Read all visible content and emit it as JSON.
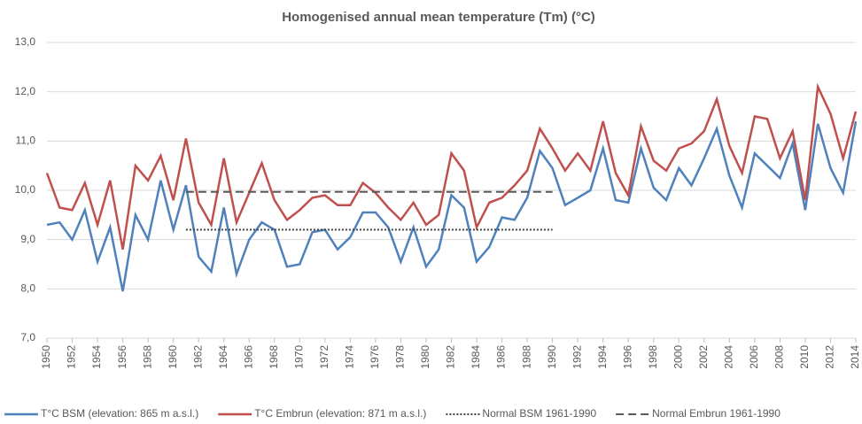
{
  "chart_data": {
    "type": "line",
    "title": "Homogenised annual mean temperature (Tm) (°C)",
    "x": [
      1950,
      1951,
      1952,
      1953,
      1954,
      1955,
      1956,
      1957,
      1958,
      1959,
      1960,
      1961,
      1962,
      1963,
      1964,
      1965,
      1966,
      1967,
      1968,
      1969,
      1970,
      1971,
      1972,
      1973,
      1974,
      1975,
      1976,
      1977,
      1978,
      1979,
      1980,
      1981,
      1982,
      1983,
      1984,
      1985,
      1986,
      1987,
      1988,
      1989,
      1990,
      1991,
      1992,
      1993,
      1994,
      1995,
      1996,
      1997,
      1998,
      1999,
      2000,
      2001,
      2002,
      2003,
      2004,
      2005,
      2006,
      2007,
      2008,
      2009,
      2010,
      2011,
      2012,
      2013,
      2014
    ],
    "series": [
      {
        "name": "T°C BSM (elevation: 865 m a.s.l.)",
        "color": "#4f81bd",
        "style": "solid",
        "values": [
          9.3,
          9.35,
          9.0,
          9.6,
          8.55,
          9.25,
          7.95,
          9.5,
          9.0,
          10.2,
          9.2,
          10.1,
          8.65,
          8.35,
          9.65,
          8.3,
          9.0,
          9.35,
          9.2,
          8.45,
          8.5,
          9.15,
          9.2,
          8.8,
          9.05,
          9.55,
          9.55,
          9.25,
          8.55,
          9.25,
          8.45,
          8.8,
          9.9,
          9.65,
          8.55,
          8.85,
          9.45,
          9.4,
          9.85,
          10.8,
          10.45,
          9.7,
          9.85,
          10.0,
          10.85,
          9.8,
          9.75,
          10.85,
          10.05,
          9.8,
          10.45,
          10.1,
          10.65,
          11.25,
          10.3,
          9.65,
          10.75,
          10.5,
          10.25,
          10.95,
          9.6,
          11.35,
          10.45,
          9.95,
          11.4
        ]
      },
      {
        "name": "T°C Embrun (elevation: 871 m a.s.l.)",
        "color": "#c0504d",
        "style": "solid",
        "values": [
          10.35,
          9.65,
          9.6,
          10.15,
          9.3,
          10.2,
          8.8,
          10.5,
          10.2,
          10.7,
          9.8,
          11.05,
          9.75,
          9.3,
          10.65,
          9.35,
          9.95,
          10.55,
          9.8,
          9.4,
          9.6,
          9.85,
          9.9,
          9.7,
          9.7,
          10.15,
          9.95,
          9.65,
          9.4,
          9.75,
          9.3,
          9.5,
          10.75,
          10.4,
          9.25,
          9.75,
          9.85,
          10.1,
          10.4,
          11.25,
          10.85,
          10.4,
          10.75,
          10.4,
          11.4,
          10.35,
          9.9,
          11.3,
          10.6,
          10.4,
          10.85,
          10.95,
          11.2,
          11.85,
          10.9,
          10.35,
          11.5,
          11.45,
          10.65,
          11.2,
          9.8,
          12.1,
          11.55,
          10.65,
          11.6
        ]
      },
      {
        "name": "Normal BSM 1961-1990",
        "color": "#404040",
        "style": "dotted",
        "x": [
          1961,
          1990
        ],
        "values": [
          9.2,
          9.2
        ]
      },
      {
        "name": "Normal Embrun 1961-1990",
        "color": "#595959",
        "style": "dashed",
        "x": [
          1961,
          1990
        ],
        "values": [
          9.97,
          9.97
        ]
      }
    ],
    "xlim": [
      1950,
      2014
    ],
    "xticks": [
      1950,
      1952,
      1954,
      1956,
      1958,
      1960,
      1962,
      1964,
      1966,
      1968,
      1970,
      1972,
      1974,
      1976,
      1978,
      1980,
      1982,
      1984,
      1986,
      1988,
      1990,
      1992,
      1994,
      1996,
      1998,
      2000,
      2002,
      2004,
      2006,
      2008,
      2010,
      2012,
      2014
    ],
    "ylim": [
      7,
      13
    ],
    "yticks": [
      {
        "value": 7,
        "label": "7,0"
      },
      {
        "value": 8,
        "label": "8,0"
      },
      {
        "value": 9,
        "label": "9,0"
      },
      {
        "value": 10,
        "label": "10,0"
      },
      {
        "value": 11,
        "label": "11,0"
      },
      {
        "value": 12,
        "label": "12,0"
      },
      {
        "value": 13,
        "label": "13,0"
      }
    ],
    "grid": true,
    "legend": "bottom"
  }
}
